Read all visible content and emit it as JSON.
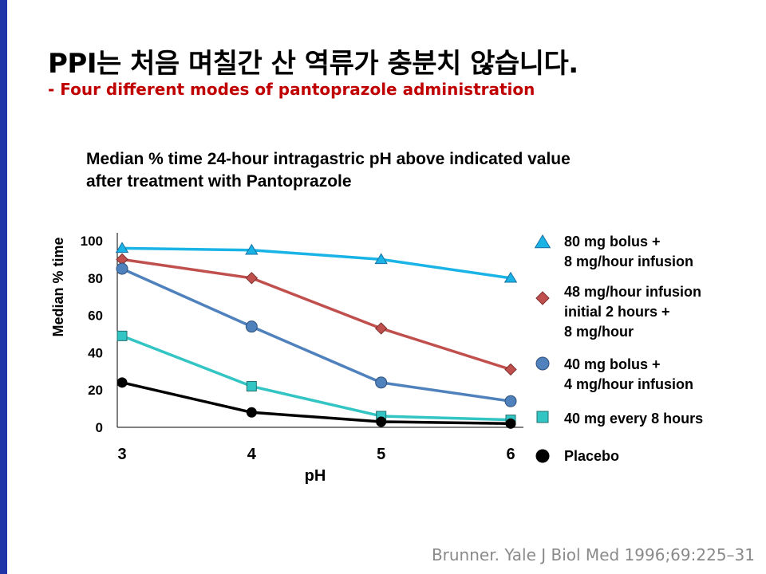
{
  "slide": {
    "title": "PPI는 처음 며칠간 산 역류가 충분치 않습니다.",
    "subtitle": "- Four different modes of pantoprazole administration",
    "citation": "Brunner. Yale J Biol Med 1996;69:225–31"
  },
  "chart_data": {
    "type": "line",
    "title_lines": [
      "Median % time 24-hour intragastric pH above indicated value",
      "after treatment with Pantoprazole"
    ],
    "xlabel": "pH",
    "ylabel": "Median % time",
    "x": [
      3,
      4,
      5,
      6
    ],
    "x_ticks": [
      "3",
      "4",
      "5",
      "6"
    ],
    "y_ticks": [
      "0",
      "20",
      "40",
      "60",
      "80",
      "100"
    ],
    "xlim": [
      3,
      6
    ],
    "ylim": [
      0,
      100
    ],
    "grid": false,
    "legend_position": "right",
    "series": [
      {
        "name_lines": [
          "80 mg bolus +",
          "8 mg/hour infusion"
        ],
        "marker": "triangle",
        "color": "#19b3e6",
        "values": [
          96,
          95,
          90,
          80
        ]
      },
      {
        "name_lines": [
          "48 mg/hour infusion",
          "initial  2 hours +",
          "8 mg/hour"
        ],
        "marker": "diamond",
        "color": "#c0504d",
        "values": [
          90,
          80,
          53,
          31
        ]
      },
      {
        "name_lines": [
          "40 mg bolus +",
          "4 mg/hour infusion"
        ],
        "marker": "circle",
        "color": "#4f81bd",
        "values": [
          85,
          54,
          24,
          14
        ]
      },
      {
        "name_lines": [
          "40 mg every 8 hours"
        ],
        "marker": "square",
        "color": "#33c4c4",
        "values": [
          49,
          22,
          6,
          4
        ]
      },
      {
        "name_lines": [
          "Placebo"
        ],
        "marker": "dot",
        "color": "#000000",
        "values": [
          24,
          8,
          3,
          2
        ]
      }
    ]
  }
}
